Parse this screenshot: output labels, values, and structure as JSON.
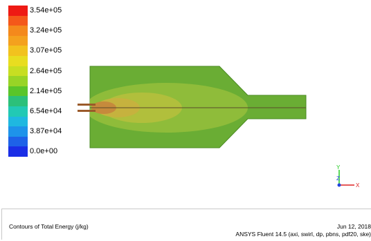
{
  "legend": {
    "entries": [
      {
        "label": "3.54e+05",
        "color": "#ee1a14"
      },
      {
        "label": "",
        "color": "#f4581a"
      },
      {
        "label": "3.24e+05",
        "color": "#f4891c"
      },
      {
        "label": "",
        "color": "#f4a11e"
      },
      {
        "label": "3.07e+05",
        "color": "#f2c21e"
      },
      {
        "label": "",
        "color": "#e8dd20"
      },
      {
        "label": "2.64e+05",
        "color": "#c7de22"
      },
      {
        "label": "",
        "color": "#98d426"
      },
      {
        "label": "2.14e+05",
        "color": "#5ac52a"
      },
      {
        "label": "",
        "color": "#2cc07a"
      },
      {
        "label": "6.54e+04",
        "color": "#22c9b4"
      },
      {
        "label": "",
        "color": "#1fb8e0"
      },
      {
        "label": "3.87e+04",
        "color": "#1e93ea"
      },
      {
        "label": "",
        "color": "#1e62e8"
      },
      {
        "label": "0.0e+00",
        "color": "#1a2ee6"
      }
    ]
  },
  "contour": {
    "colors": {
      "domain": "#6aad34",
      "outline": "#4a8a22",
      "zone_outer": "#8fbc3a",
      "zone_mid": "#b1bf3c",
      "zone_inner": "#c6b23e",
      "core": "#c68a3c",
      "jet": "#9a5a2a",
      "axis_line": "#5a4a2a"
    }
  },
  "triad": {
    "y_label": "Y",
    "z_label": "Z",
    "x_label": "X",
    "y_color": "#22cc22",
    "z_color": "#2244dd",
    "x_color": "#dd2222"
  },
  "footer": {
    "title": "Contours of Total Energy (j/kg)",
    "date": "Jun 12, 2018",
    "solver": "ANSYS Fluent 14.5 (axi, swirl, dp, pbns, pdf20, ske)"
  }
}
